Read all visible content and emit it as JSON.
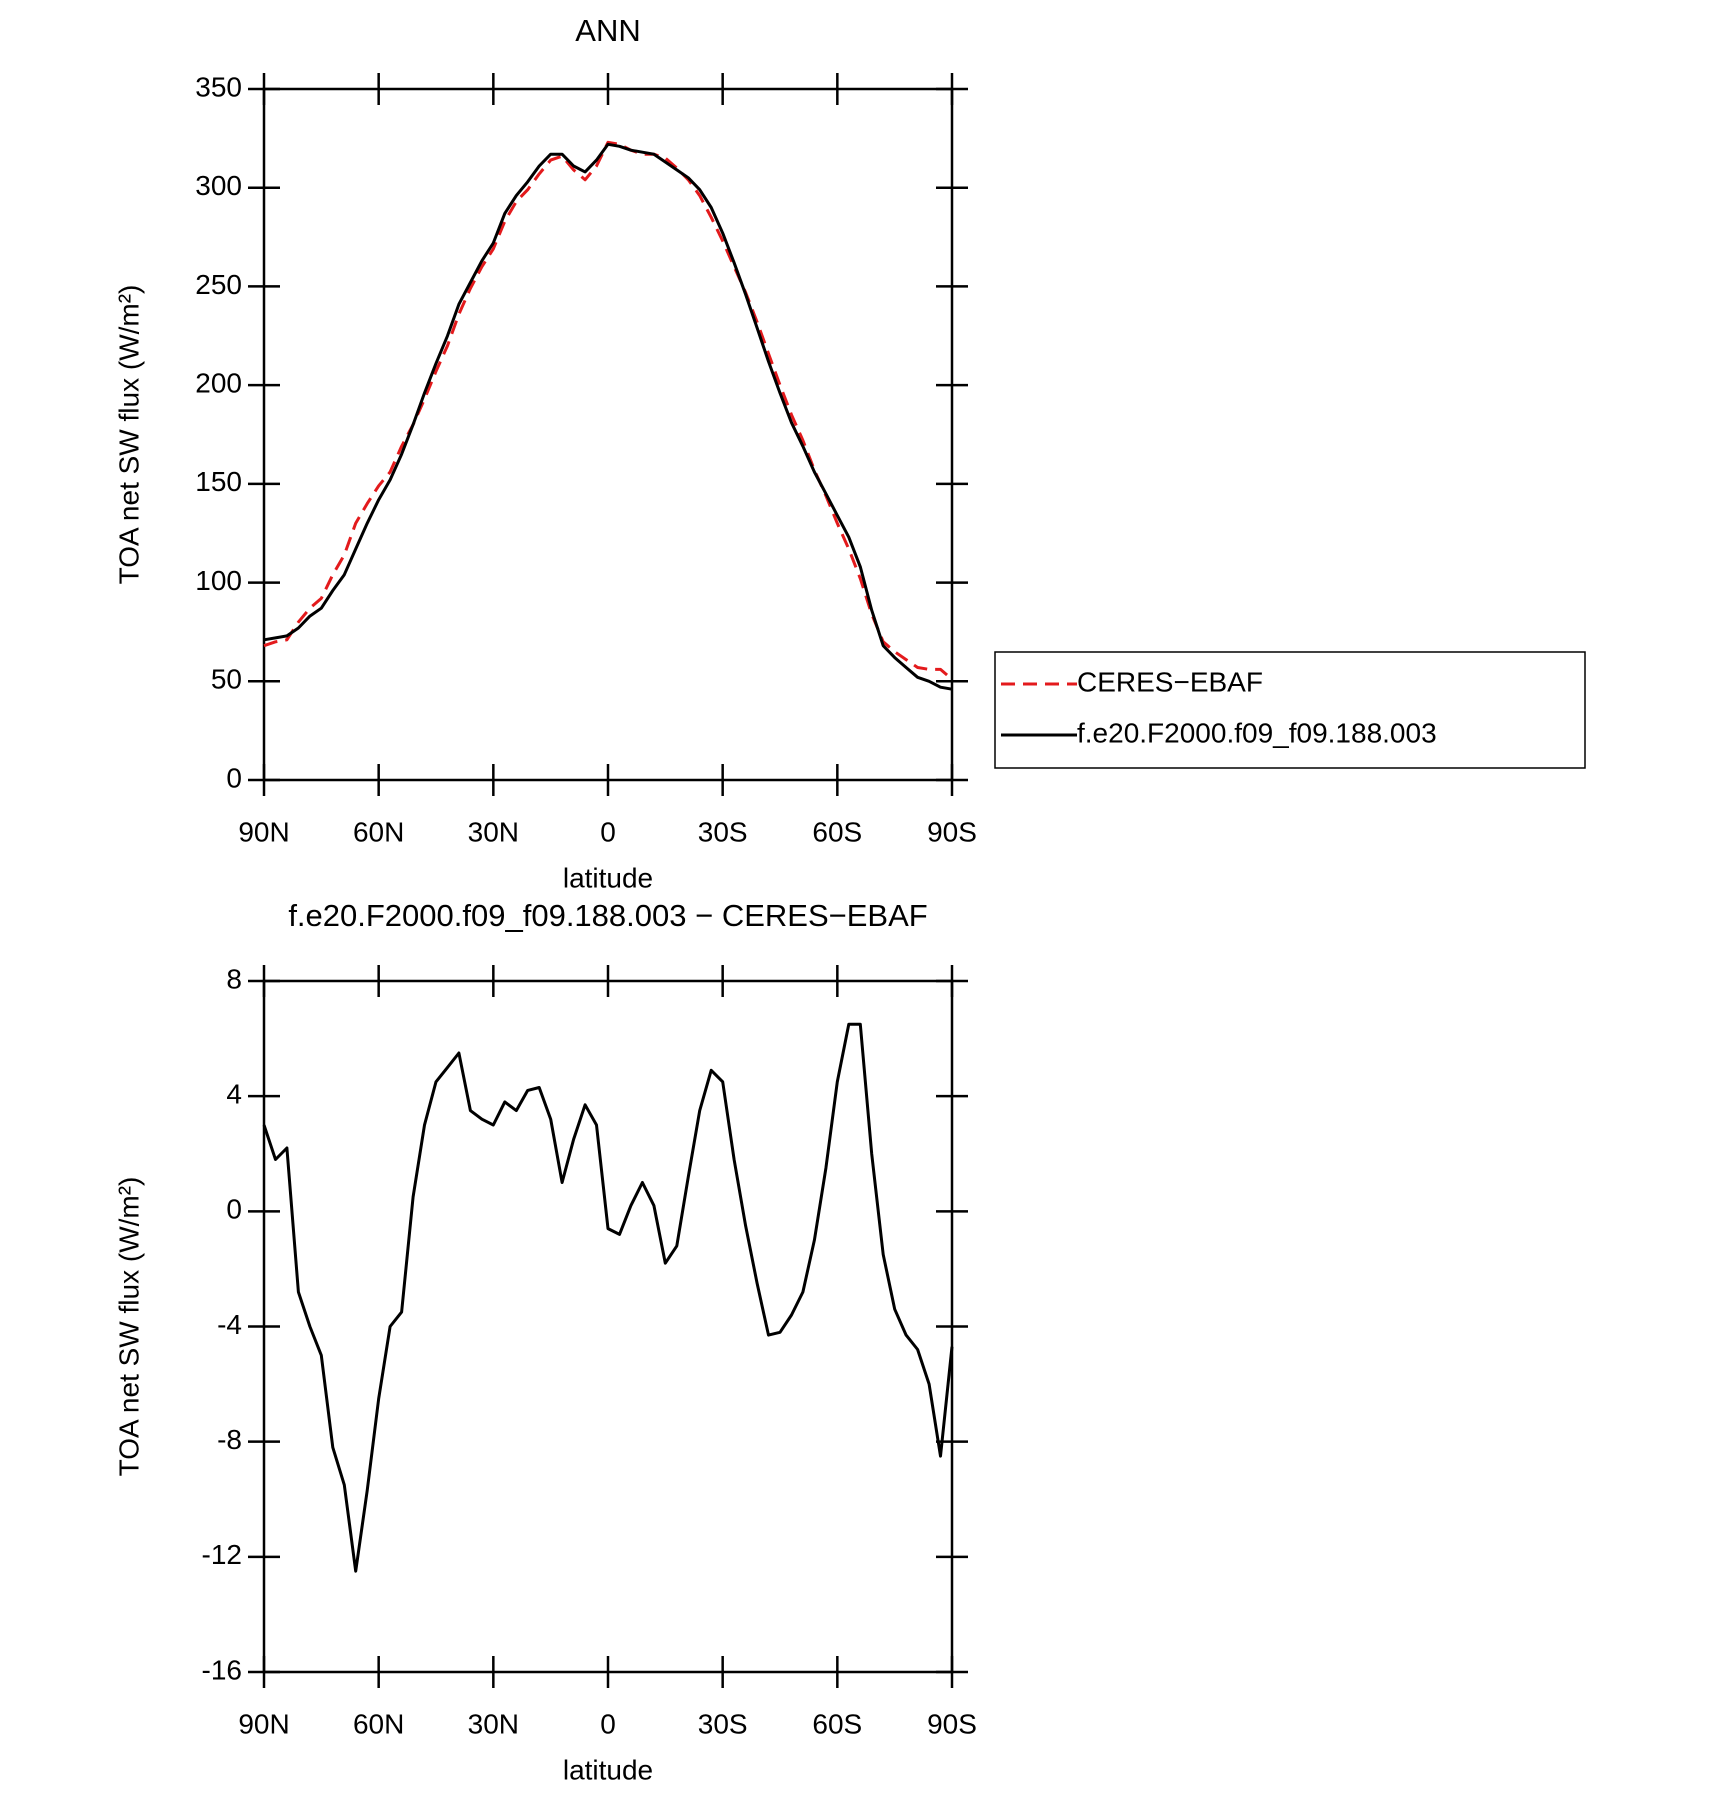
{
  "chart_data": [
    {
      "type": "line",
      "title": "ANN",
      "xlabel": "latitude",
      "ylabel": "TOA net SW flux (W/m²)",
      "x": [
        90,
        87,
        84,
        81,
        78,
        75,
        72,
        69,
        66,
        63,
        60,
        57,
        54,
        51,
        48,
        45,
        42,
        39,
        36,
        33,
        30,
        27,
        24,
        21,
        18,
        15,
        12,
        9,
        6,
        3,
        0,
        -3,
        -6,
        -9,
        -12,
        -15,
        -18,
        -21,
        -24,
        -27,
        -30,
        -33,
        -36,
        -39,
        -42,
        -45,
        -48,
        -51,
        -54,
        -57,
        -60,
        -63,
        -66,
        -69,
        -72,
        -75,
        -78,
        -81,
        -84,
        -87,
        -90
      ],
      "series": [
        {
          "name": "CERES−EBAF",
          "color": "#e31a1c",
          "linestyle": "dashed",
          "values": [
            68,
            70,
            71,
            80,
            87,
            92,
            104,
            114,
            130,
            140,
            149,
            156,
            169,
            180,
            193,
            207,
            220,
            236,
            249,
            260,
            269,
            283,
            293,
            299,
            307,
            314,
            316,
            309,
            304,
            311,
            323,
            322,
            319,
            317,
            317,
            315,
            310,
            304,
            296,
            285,
            273,
            260,
            247,
            232,
            216,
            200,
            185,
            172,
            157,
            144,
            130,
            117,
            102,
            84,
            70,
            65,
            61,
            57,
            56,
            56,
            51
          ]
        },
        {
          "name": "f.e20.F2000.f09_f09.188.003",
          "color": "#000000",
          "linestyle": "solid",
          "values": [
            71,
            72,
            73,
            77,
            83,
            87,
            96,
            104,
            117,
            130,
            142,
            152,
            165,
            180,
            196,
            211,
            225,
            241,
            252,
            263,
            272,
            287,
            296,
            303,
            311,
            317,
            317,
            311,
            308,
            314,
            322,
            321,
            319,
            318,
            317,
            313,
            309,
            305,
            299,
            290,
            277,
            262,
            246,
            229,
            212,
            196,
            181,
            169,
            156,
            145,
            134,
            123,
            108,
            86,
            68,
            62,
            57,
            52,
            50,
            47,
            46
          ]
        }
      ],
      "xlim": [
        90,
        -90
      ],
      "xticks": [
        {
          "value": 90,
          "label": "90N"
        },
        {
          "value": 60,
          "label": "60N"
        },
        {
          "value": 30,
          "label": "30N"
        },
        0,
        {
          "value": -30,
          "label": "30S"
        },
        {
          "value": -60,
          "label": "60S"
        },
        {
          "value": -90,
          "label": "90S"
        }
      ],
      "ylim": [
        0,
        350
      ],
      "yticks": [
        0,
        50,
        100,
        150,
        200,
        250,
        300,
        350
      ],
      "legend": "right"
    },
    {
      "type": "line",
      "title": "f.e20.F2000.f09_f09.188.003 − CERES−EBAF",
      "xlabel": "latitude",
      "ylabel": "TOA net SW flux (W/m²)",
      "x": [
        90,
        87,
        84,
        81,
        78,
        75,
        72,
        69,
        66,
        63,
        60,
        57,
        54,
        51,
        48,
        45,
        42,
        39,
        36,
        33,
        30,
        27,
        24,
        21,
        18,
        15,
        12,
        9,
        6,
        3,
        0,
        -3,
        -6,
        -9,
        -12,
        -15,
        -18,
        -21,
        -24,
        -27,
        -30,
        -33,
        -36,
        -39,
        -42,
        -45,
        -48,
        -51,
        -54,
        -57,
        -60,
        -63,
        -66,
        -69,
        -72,
        -75,
        -78,
        -81,
        -84,
        -87,
        -90
      ],
      "series": [
        {
          "color": "#000000",
          "linestyle": "solid",
          "values": [
            3.0,
            1.8,
            2.2,
            -2.8,
            -4.0,
            -5.0,
            -8.2,
            -9.5,
            -12.5,
            -9.7,
            -6.5,
            -4.0,
            -3.5,
            0.5,
            3.0,
            4.5,
            5.0,
            5.5,
            3.5,
            3.2,
            3.0,
            3.8,
            3.5,
            4.2,
            4.3,
            3.2,
            1.0,
            2.5,
            3.7,
            3.0,
            -0.6,
            -0.8,
            0.2,
            1.0,
            0.2,
            -1.8,
            -1.2,
            1.2,
            3.5,
            4.9,
            4.5,
            1.8,
            -0.5,
            -2.5,
            -4.3,
            -4.2,
            -3.6,
            -2.8,
            -1.0,
            1.5,
            4.5,
            6.5,
            6.5,
            2.0,
            -1.5,
            -3.4,
            -4.3,
            -4.8,
            -6.0,
            -8.5,
            -4.7
          ]
        }
      ],
      "xlim": [
        90,
        -90
      ],
      "xticks": [
        {
          "value": 90,
          "label": "90N"
        },
        {
          "value": 60,
          "label": "60N"
        },
        {
          "value": 30,
          "label": "30N"
        },
        0,
        {
          "value": -30,
          "label": "30S"
        },
        {
          "value": -60,
          "label": "60S"
        },
        {
          "value": -90,
          "label": "90S"
        }
      ],
      "ylim": [
        -16,
        8
      ],
      "yticks": [
        -16,
        -12,
        -8,
        -4,
        0,
        4,
        8
      ]
    }
  ]
}
